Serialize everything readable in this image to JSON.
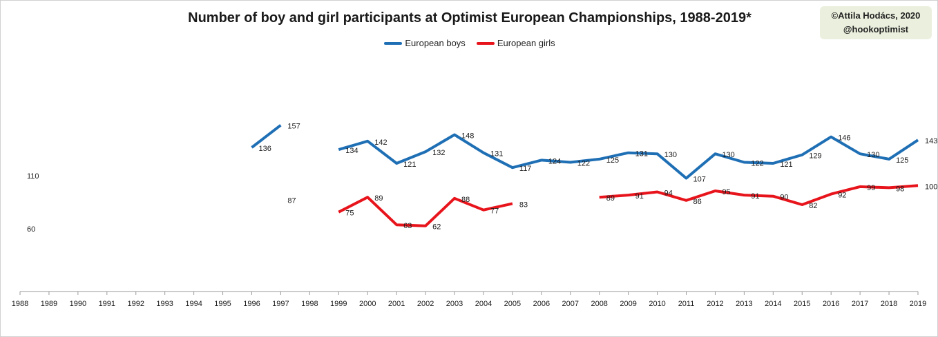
{
  "credit": {
    "line1": "©Attila Hodács, 2020",
    "line2": "@hookoptimist"
  },
  "legend": {
    "boys_label": "European boys",
    "girls_label": "European girls"
  },
  "colors": {
    "boys": "#1f6fb5",
    "girls": "#e8141c",
    "axis": "#9a9a9a",
    "text": "#1a1a1a"
  },
  "chart_data": {
    "type": "line",
    "title": "Number of boy and girl participants at Optimist European Championships, 1988-2019*",
    "xlabel": "",
    "ylabel": "",
    "ylim": [
      0,
      190
    ],
    "grid": false,
    "legend_position": "top",
    "categories": [
      "1988",
      "1989",
      "1990",
      "1991",
      "1992",
      "1993",
      "1994",
      "1995",
      "1996",
      "1997",
      "1998",
      "1999",
      "2000",
      "2001",
      "2002",
      "2003",
      "2004",
      "2005",
      "2006",
      "2007",
      "2008",
      "2009",
      "2010",
      "2011",
      "2012",
      "2013",
      "2014",
      "2015",
      "2016",
      "2017",
      "2018",
      "2019"
    ],
    "series": [
      {
        "name": "European boys",
        "values": [
          110,
          null,
          null,
          null,
          null,
          null,
          null,
          null,
          136,
          157,
          null,
          134,
          142,
          121,
          132,
          148,
          131,
          117,
          124,
          122,
          125,
          131,
          130,
          107,
          130,
          122,
          121,
          129,
          146,
          130,
          125,
          143
        ]
      },
      {
        "name": "European girls",
        "values": [
          60,
          null,
          null,
          null,
          null,
          null,
          null,
          null,
          null,
          87,
          null,
          75,
          89,
          63,
          62,
          88,
          77,
          83,
          null,
          null,
          89,
          91,
          94,
          86,
          95,
          91,
          90,
          82,
          92,
          99,
          98,
          100
        ]
      }
    ]
  }
}
